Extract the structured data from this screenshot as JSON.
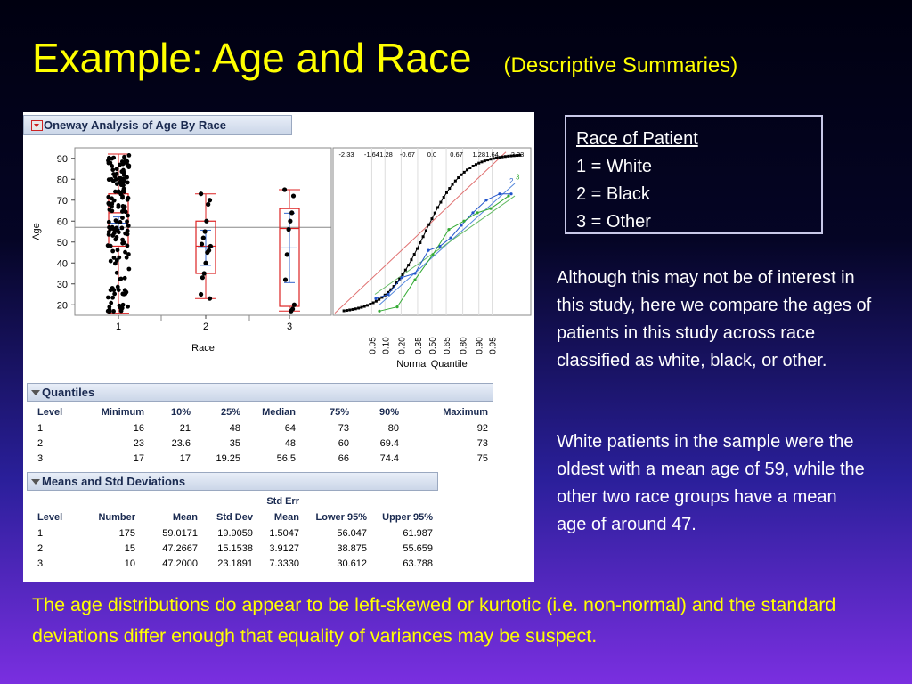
{
  "title": {
    "main": "Example:  Age and Race",
    "sub": "(Descriptive Summaries)"
  },
  "panel": {
    "oneway_header": "Oneway Analysis of Age By Race",
    "quantiles_header": "Quantiles",
    "means_header": "Means and Std Deviations"
  },
  "chart_data": [
    {
      "type": "scatter",
      "title": "",
      "xlabel": "Race",
      "ylabel": "Age",
      "categories": [
        "1",
        "2",
        "3"
      ],
      "y_ticks": [
        20,
        30,
        40,
        50,
        60,
        70,
        80,
        90
      ],
      "ylim": [
        16,
        93
      ],
      "grand_mean_line": 57,
      "boxes": [
        {
          "category": "1",
          "min": 16,
          "q1": 48,
          "median": 64,
          "q3": 73,
          "max": 92,
          "mean": 59.0171,
          "lower95": 56.047,
          "upper95": 61.987
        },
        {
          "category": "2",
          "min": 23,
          "q1": 35,
          "median": 48,
          "q3": 60,
          "max": 73,
          "mean": 47.2667,
          "lower95": 38.875,
          "upper95": 55.659
        },
        {
          "category": "3",
          "min": 17,
          "q1": 19.25,
          "median": 56.5,
          "q3": 66,
          "max": 75,
          "mean": 47.2,
          "lower95": 30.612,
          "upper95": 63.788
        }
      ],
      "points": {
        "2": [
          73,
          70,
          68,
          60,
          55,
          52,
          49,
          48,
          46,
          45,
          40,
          35,
          33,
          25,
          23
        ],
        "3": [
          75,
          72,
          64,
          60,
          56,
          44,
          32,
          20,
          18,
          17
        ]
      }
    },
    {
      "type": "line",
      "xlabel": "Normal Quantile",
      "top_ticks": [
        "-2.33",
        "-1.64",
        "-1.28",
        "-0.67",
        "0.0",
        "0.67",
        "1.28",
        "1.64",
        "2.33"
      ],
      "bottom_ticks": [
        "0.05",
        "0.10",
        "0.20",
        "0.35",
        "0.50",
        "0.65",
        "0.80",
        "0.90",
        "0.95"
      ],
      "series_labels": [
        "1",
        "2",
        "3"
      ],
      "colors": {
        "1": "#000000",
        "2": "#2255cc",
        "3": "#33aa33",
        "ref1": "#e07070",
        "ref2": "#5588dd",
        "ref3": "#66bb66"
      }
    }
  ],
  "quantiles": {
    "headers": [
      "Level",
      "Minimum",
      "10%",
      "25%",
      "Median",
      "75%",
      "90%",
      "Maximum"
    ],
    "rows": [
      [
        "1",
        "16",
        "21",
        "48",
        "64",
        "73",
        "80",
        "92"
      ],
      [
        "2",
        "23",
        "23.6",
        "35",
        "48",
        "60",
        "69.4",
        "73"
      ],
      [
        "3",
        "17",
        "17",
        "19.25",
        "56.5",
        "66",
        "74.4",
        "75"
      ]
    ]
  },
  "means": {
    "header_top": "Std Err",
    "headers": [
      "Level",
      "Number",
      "Mean",
      "Std Dev",
      "Mean",
      "Lower 95%",
      "Upper 95%"
    ],
    "rows": [
      [
        "1",
        "175",
        "59.0171",
        "19.9059",
        "1.5047",
        "56.047",
        "61.987"
      ],
      [
        "2",
        "15",
        "47.2667",
        "15.1538",
        "3.9127",
        "38.875",
        "55.659"
      ],
      [
        "3",
        "10",
        "47.2000",
        "23.1891",
        "7.3330",
        "30.612",
        "63.788"
      ]
    ]
  },
  "legend": {
    "heading": "Race of Patient",
    "items": [
      "1 = White",
      "2 = Black",
      "3 = Other"
    ]
  },
  "paragraphs": [
    "Although this may not be of interest in this study, here we compare the ages of patients in this study across race classified as white, black, or other.",
    "White patients in the sample were the oldest with a mean age of 59, while the other two race groups have a mean age of around 47."
  ],
  "bottom_text": "The age distributions do appear to be left-skewed or kurtotic (i.e. non-normal) and the standard deviations differ enough that equality of variances may be suspect."
}
